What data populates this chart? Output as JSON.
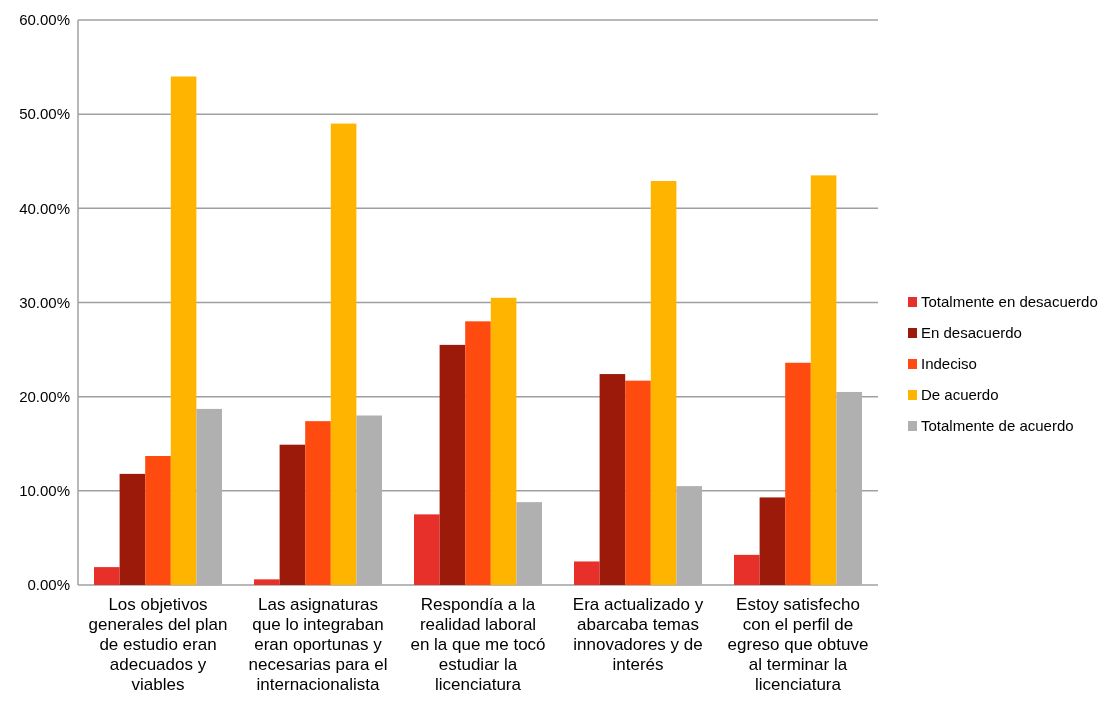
{
  "chart_data": {
    "type": "bar",
    "categories": [
      "Los objetivos generales del plan de estudio eran adecuados y viables",
      "Las asignaturas que lo integraban eran oportunas y necesarias para el internacionalista",
      "Respondía a la realidad laboral en la que me tocó estudiar la licenciatura",
      "Era actualizado y abarcaba temas innovadores y de interés",
      "Estoy satisfecho con el perfil de egreso que obtuve al terminar la licenciatura"
    ],
    "series": [
      {
        "name": "Totalmente en desacuerdo",
        "color": "#e8302a",
        "values": [
          1.9,
          0.6,
          7.5,
          2.5,
          3.2
        ]
      },
      {
        "name": "En desacuerdo",
        "color": "#9c1a0a",
        "values": [
          11.8,
          14.9,
          25.5,
          22.4,
          9.3
        ]
      },
      {
        "name": "Indeciso",
        "color": "#ff4a10",
        "values": [
          13.7,
          17.4,
          28.0,
          21.7,
          23.6
        ]
      },
      {
        "name": "De acuerdo",
        "color": "#ffb400",
        "values": [
          54.0,
          49.0,
          30.5,
          42.9,
          43.5
        ]
      },
      {
        "name": "Totalmente de acuerdo",
        "color": "#b0b0b0",
        "values": [
          18.7,
          18.0,
          8.8,
          10.5,
          20.5
        ]
      }
    ],
    "ylim": [
      0,
      60
    ],
    "yticks": [
      {
        "value": 0,
        "label": "0.00%"
      },
      {
        "value": 10,
        "label": "10.00%"
      },
      {
        "value": 20,
        "label": "20.00%"
      },
      {
        "value": 30,
        "label": "30.00%"
      },
      {
        "value": 40,
        "label": "40.00%"
      },
      {
        "value": 50,
        "label": "50.00%"
      },
      {
        "value": 60,
        "label": "60.00%"
      }
    ],
    "grid": "y",
    "legend": "right"
  }
}
